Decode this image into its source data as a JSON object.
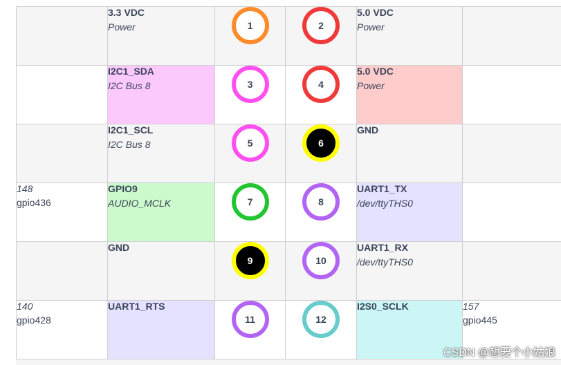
{
  "rows": [
    {
      "left_gpio": {
        "num": "",
        "name": ""
      },
      "left_func": {
        "name": "3.3 VDC",
        "desc": "Power",
        "bg": "#f5f5f5"
      },
      "left_pin": {
        "number": "1",
        "ring": "#ff8a2a",
        "dark": false
      },
      "right_pin": {
        "number": "2",
        "ring": "#f03a3a",
        "dark": false
      },
      "right_func": {
        "name": "5.0 VDC",
        "desc": "Power",
        "bg": "#f5f5f5"
      },
      "right_gpio": {
        "num": "",
        "name": ""
      }
    },
    {
      "left_gpio": {
        "num": "",
        "name": ""
      },
      "left_func": {
        "name": "I2C1_SDA",
        "desc": "I2C Bus 8",
        "bg": "#fcc9fc"
      },
      "left_pin": {
        "number": "3",
        "ring": "#ff4ff0",
        "dark": false
      },
      "right_pin": {
        "number": "4",
        "ring": "#f03a3a",
        "dark": false
      },
      "right_func": {
        "name": "5.0 VDC",
        "desc": "Power",
        "bg": "#ffcccc"
      },
      "right_gpio": {
        "num": "",
        "name": ""
      }
    },
    {
      "left_gpio": {
        "num": "",
        "name": ""
      },
      "left_func": {
        "name": "I2C1_SCL",
        "desc": "I2C Bus 8",
        "bg": "#f5f5f5"
      },
      "left_pin": {
        "number": "5",
        "ring": "#ff4ff0",
        "dark": false
      },
      "right_pin": {
        "number": "6",
        "ring": "#ffff00",
        "dark": true
      },
      "right_func": {
        "name": "GND",
        "desc": "",
        "bg": "#f5f5f5"
      },
      "right_gpio": {
        "num": "",
        "name": ""
      }
    },
    {
      "left_gpio": {
        "num": "148",
        "name": "gpio436"
      },
      "left_func": {
        "name": "GPIO9",
        "desc": "AUDIO_MCLK",
        "bg": "#ccfacc"
      },
      "left_pin": {
        "number": "7",
        "ring": "#22c531",
        "dark": false
      },
      "right_pin": {
        "number": "8",
        "ring": "#b264f5",
        "dark": false
      },
      "right_func": {
        "name": "UART1_TX",
        "desc": "/dev/ttyTHS0",
        "bg": "#e4e2ff"
      },
      "right_gpio": {
        "num": "",
        "name": ""
      }
    },
    {
      "left_gpio": {
        "num": "",
        "name": ""
      },
      "left_func": {
        "name": "GND",
        "desc": "",
        "bg": "#f5f5f5"
      },
      "left_pin": {
        "number": "9",
        "ring": "#ffff00",
        "dark": true
      },
      "right_pin": {
        "number": "10",
        "ring": "#b264f5",
        "dark": false
      },
      "right_func": {
        "name": "UART1_RX",
        "desc": "/dev/ttyTHS0",
        "bg": "#f5f5f5"
      },
      "right_gpio": {
        "num": "",
        "name": ""
      }
    },
    {
      "left_gpio": {
        "num": "140",
        "name": "gpio428"
      },
      "left_func": {
        "name": "UART1_RTS",
        "desc": "",
        "bg": "#e4e2ff"
      },
      "left_pin": {
        "number": "11",
        "ring": "#b264f5",
        "dark": false
      },
      "right_pin": {
        "number": "12",
        "ring": "#66cccc",
        "dark": false
      },
      "right_func": {
        "name": "I2S0_SCLK",
        "desc": "",
        "bg": "#ccf6f6"
      },
      "right_gpio": {
        "num": "157",
        "name": "gpio445"
      }
    }
  ],
  "watermark": "CSDN @想要个小姑娘"
}
